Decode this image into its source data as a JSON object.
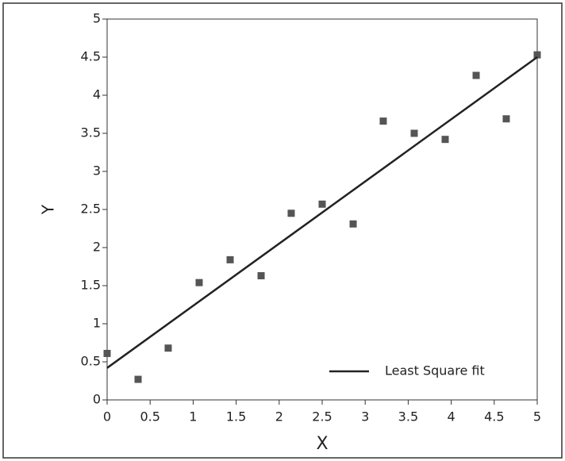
{
  "chart_data": {
    "type": "scatter",
    "xlabel": "X",
    "ylabel": "Y",
    "xlim": [
      0,
      5
    ],
    "ylim": [
      0,
      5
    ],
    "xticks": [
      0,
      0.5,
      1,
      1.5,
      2,
      2.5,
      3,
      3.5,
      4,
      4.5,
      5
    ],
    "yticks": [
      0,
      0.5,
      1,
      1.5,
      2,
      2.5,
      3,
      3.5,
      4,
      4.5,
      5
    ],
    "points": {
      "x": [
        0,
        0.36,
        0.71,
        1.07,
        1.43,
        1.79,
        2.14,
        2.5,
        2.86,
        3.21,
        3.57,
        3.93,
        4.29,
        4.64,
        5
      ],
      "y": [
        0.61,
        0.27,
        0.68,
        1.54,
        1.84,
        1.63,
        2.45,
        2.57,
        2.31,
        3.66,
        3.5,
        3.42,
        4.26,
        3.69,
        4.53
      ],
      "color": "#555555"
    },
    "fit": {
      "name": "Least Square fit",
      "x": [
        0,
        5
      ],
      "y": [
        0.42,
        4.5
      ],
      "color": "#222222"
    },
    "legend": "lower right"
  }
}
